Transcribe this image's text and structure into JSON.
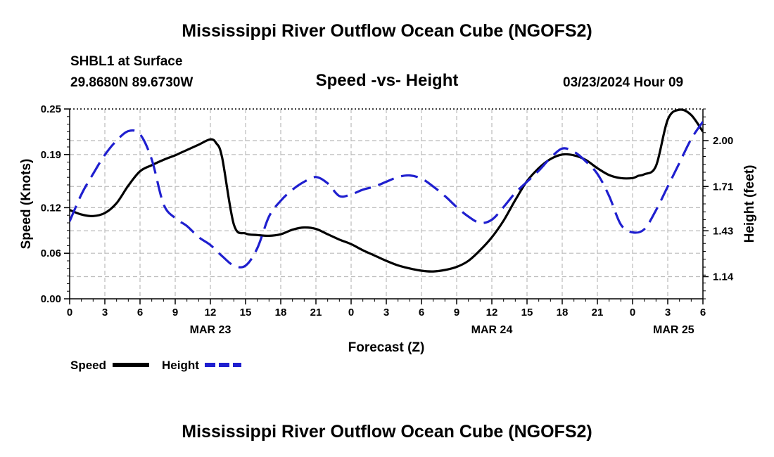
{
  "header": {
    "title": "Mississippi River Outflow Ocean Cube (NGOFS2)",
    "station": "SHBL1 at Surface",
    "coords": "29.8680N  89.6730W",
    "subtitle": "Speed -vs- Height",
    "datetime": "03/23/2024 Hour 09"
  },
  "footer": {
    "title": "Mississippi River Outflow Ocean Cube (NGOFS2)"
  },
  "legend": {
    "speed_label": "Speed",
    "height_label": "Height"
  },
  "colors": {
    "speed": "#000000",
    "height": "#1f1fcf",
    "grid": "#bbbbbb"
  },
  "chart_data": {
    "type": "line",
    "title": "Speed -vs- Height",
    "xlabel": "Forecast (Z)",
    "ylabel": "Speed (Knots)",
    "y2label": "Height (feet)",
    "xlim": [
      0,
      54
    ],
    "ylim": [
      0,
      0.25
    ],
    "y2lim": [
      1.0,
      2.2
    ],
    "x_ticks": [
      0,
      3,
      6,
      9,
      12,
      15,
      18,
      21,
      24,
      27,
      30,
      33,
      36,
      39,
      42,
      45,
      48,
      51,
      54
    ],
    "x_tick_labels": [
      "0",
      "3",
      "6",
      "9",
      "12",
      "15",
      "18",
      "21",
      "0",
      "3",
      "6",
      "9",
      "12",
      "15",
      "18",
      "21",
      "0",
      "3",
      "6"
    ],
    "y_ticks": [
      0.0,
      0.06,
      0.12,
      0.19,
      0.25
    ],
    "y_tick_labels": [
      "0.00",
      "0.06",
      "0.12",
      "0.19",
      "0.25"
    ],
    "y2_ticks": [
      1.14,
      1.43,
      1.71,
      2.0
    ],
    "y2_tick_labels": [
      "1.14",
      "1.43",
      "1.71",
      "2.00"
    ],
    "date_labels": [
      {
        "x": 12,
        "label": "MAR 23"
      },
      {
        "x": 36,
        "label": "MAR 24"
      },
      {
        "x": 51.5,
        "label": "MAR 25"
      }
    ],
    "series": [
      {
        "name": "Speed",
        "axis": "left",
        "style": "solid",
        "x": [
          0,
          1,
          2,
          3,
          4,
          5,
          6,
          7,
          8,
          9,
          10,
          11,
          12,
          12.5,
          13,
          14,
          15,
          16,
          17,
          18,
          19,
          20,
          21,
          22,
          23,
          24,
          25,
          26,
          27,
          28,
          29,
          30,
          31,
          32,
          33,
          34,
          35,
          36,
          37,
          38,
          39,
          40,
          41,
          42,
          43,
          44,
          45,
          46,
          47,
          48,
          48.5,
          49,
          50,
          51,
          52,
          53,
          54
        ],
        "values": [
          0.117,
          0.111,
          0.109,
          0.113,
          0.126,
          0.149,
          0.168,
          0.176,
          0.183,
          0.189,
          0.196,
          0.203,
          0.21,
          0.205,
          0.186,
          0.098,
          0.086,
          0.084,
          0.083,
          0.085,
          0.091,
          0.094,
          0.092,
          0.085,
          0.078,
          0.072,
          0.064,
          0.057,
          0.05,
          0.044,
          0.04,
          0.037,
          0.036,
          0.038,
          0.042,
          0.05,
          0.064,
          0.081,
          0.103,
          0.13,
          0.155,
          0.172,
          0.184,
          0.19,
          0.189,
          0.183,
          0.172,
          0.163,
          0.159,
          0.159,
          0.162,
          0.164,
          0.175,
          0.236,
          0.249,
          0.242,
          0.22
        ],
        "color": "#000000"
      },
      {
        "name": "Height",
        "axis": "right",
        "style": "dashed",
        "x": [
          0,
          1,
          2,
          3,
          4,
          5,
          6,
          7,
          8,
          9,
          10,
          11,
          12,
          13,
          14,
          15,
          16,
          17,
          18,
          19,
          20,
          21,
          22,
          23,
          24,
          25,
          26,
          27,
          28,
          29,
          30,
          31,
          32,
          33,
          34,
          35,
          36,
          37,
          38,
          39,
          40,
          41,
          42,
          43,
          44,
          45,
          46,
          47,
          48,
          49,
          50,
          51,
          52,
          53,
          54
        ],
        "values": [
          1.49,
          1.66,
          1.79,
          1.91,
          2.0,
          2.06,
          2.04,
          1.88,
          1.6,
          1.51,
          1.46,
          1.39,
          1.34,
          1.27,
          1.21,
          1.21,
          1.32,
          1.52,
          1.62,
          1.69,
          1.74,
          1.77,
          1.73,
          1.65,
          1.66,
          1.69,
          1.71,
          1.74,
          1.77,
          1.78,
          1.76,
          1.71,
          1.65,
          1.58,
          1.52,
          1.48,
          1.5,
          1.58,
          1.67,
          1.74,
          1.81,
          1.89,
          1.95,
          1.93,
          1.87,
          1.79,
          1.65,
          1.47,
          1.42,
          1.44,
          1.56,
          1.71,
          1.86,
          2.01,
          2.12
        ],
        "color": "#1f1fcf"
      }
    ]
  }
}
